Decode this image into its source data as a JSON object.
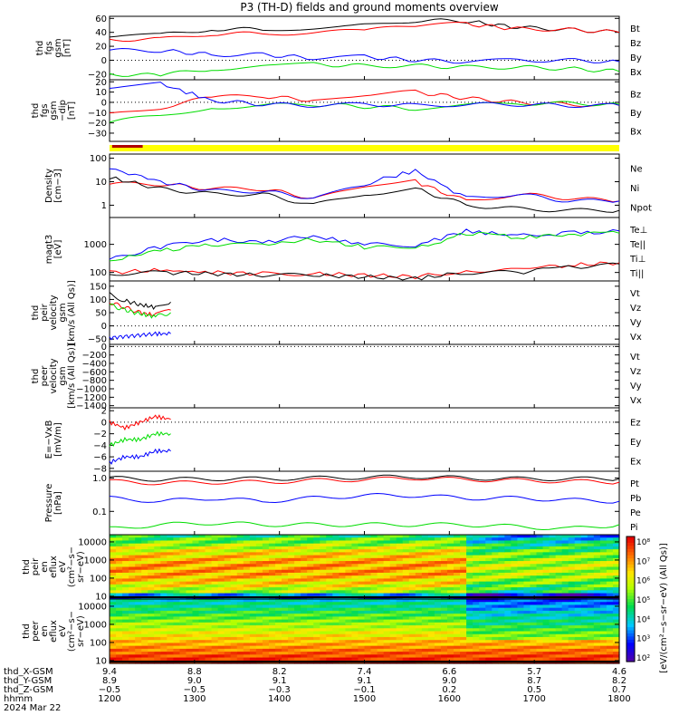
{
  "title": "P3 (TH-D) fields and ground moments overview",
  "chart_data": [
    {
      "type": "line",
      "ylabel": [
        "thd",
        "fgs",
        "gsm",
        "[nT]"
      ],
      "ylim": [
        -28,
        63
      ],
      "yticks": [
        "60",
        "40",
        "20",
        "0",
        "−20"
      ],
      "ytick_values": [
        60,
        40,
        20,
        0,
        -20
      ],
      "series": [
        {
          "name": "Bt",
          "color": "#000000",
          "x": [
            0,
            0.1,
            0.2,
            0.3,
            0.4,
            0.5,
            0.6,
            0.7,
            0.8,
            0.9,
            1
          ],
          "values": [
            33,
            36,
            45,
            44,
            47,
            50,
            57,
            56,
            47,
            44,
            40
          ]
        },
        {
          "name": "Bz",
          "color": "#ff0000",
          "x": [
            0,
            0.1,
            0.2,
            0.3,
            0.4,
            0.5,
            0.6,
            0.7,
            0.8,
            0.9,
            1
          ],
          "values": [
            30,
            30,
            38,
            38,
            40,
            42,
            50,
            52,
            45,
            44,
            40
          ]
        },
        {
          "name": "By",
          "color": "#0000ff",
          "x": [
            0,
            0.1,
            0.2,
            0.3,
            0.4,
            0.5,
            0.6,
            0.7,
            0.8,
            0.9,
            1
          ],
          "values": [
            14,
            14,
            8,
            8,
            3,
            5,
            0,
            -2,
            0,
            0,
            -2
          ]
        },
        {
          "name": "Bx",
          "color": "#00dd00",
          "x": [
            0,
            0.1,
            0.2,
            0.3,
            0.4,
            0.5,
            0.6,
            0.7,
            0.8,
            0.9,
            1
          ],
          "values": [
            -20,
            -22,
            -12,
            -10,
            -6,
            -8,
            -8,
            -10,
            -10,
            -12,
            -16
          ]
        }
      ]
    },
    {
      "type": "line",
      "ylabel": [
        "thd",
        "fgs",
        "gsm",
        "−dip",
        "[nT]"
      ],
      "ylim": [
        -38,
        22
      ],
      "yticks": [
        "20",
        "10",
        "0",
        "−10",
        "−20",
        "−30"
      ],
      "ytick_values": [
        20,
        10,
        0,
        -10,
        -20,
        -30
      ],
      "series": [
        {
          "name": "Bz",
          "color": "#ff0000",
          "x": [
            0,
            0.1,
            0.2,
            0.3,
            0.4,
            0.5,
            0.6,
            0.7,
            0.8,
            0.9,
            1
          ],
          "values": [
            -12,
            -5,
            5,
            6,
            2,
            8,
            10,
            4,
            0,
            -2,
            -3
          ]
        },
        {
          "name": "By",
          "color": "#00dd00",
          "x": [
            0,
            0.1,
            0.2,
            0.3,
            0.4,
            0.5,
            0.6,
            0.7,
            0.8,
            0.9,
            1
          ],
          "values": [
            -20,
            -12,
            -5,
            -3,
            -2,
            -4,
            -6,
            -3,
            -1,
            -1,
            -2
          ]
        },
        {
          "name": "Bx",
          "color": "#0000ff",
          "x": [
            0,
            0.1,
            0.2,
            0.3,
            0.4,
            0.5,
            0.6,
            0.7,
            0.8,
            0.9,
            1
          ],
          "values": [
            15,
            18,
            2,
            -2,
            -3,
            -2,
            -3,
            -2,
            -2,
            -3,
            -3
          ]
        }
      ]
    },
    {
      "type": "line",
      "ylabel": [
        "Density",
        "[cm−3]"
      ],
      "yscale": "log",
      "ylim": [
        0.3,
        150
      ],
      "yticks": [
        "100",
        "10",
        "1"
      ],
      "ytick_values": [
        100,
        10,
        1
      ],
      "series": [
        {
          "name": "Ne",
          "color": "#ff0000",
          "x": [
            0,
            0.1,
            0.2,
            0.3,
            0.4,
            0.5,
            0.6,
            0.7,
            0.8,
            0.9,
            1
          ],
          "values": [
            8,
            8,
            5,
            5,
            2,
            5,
            10,
            1.5,
            3,
            2,
            1.5
          ]
        },
        {
          "name": "Ni",
          "color": "#000000",
          "x": [
            0,
            0.1,
            0.2,
            0.3,
            0.4,
            0.5,
            0.6,
            0.7,
            0.8,
            0.9,
            1
          ],
          "values": [
            15,
            5,
            3,
            3,
            1,
            3,
            5,
            1,
            0.7,
            0.6,
            0.6
          ]
        },
        {
          "name": "Npot",
          "color": "#0000ff",
          "x": [
            0,
            0.1,
            0.2,
            0.3,
            0.4,
            0.5,
            0.6,
            0.7,
            0.8,
            0.9,
            1
          ],
          "values": [
            40,
            10,
            4,
            4,
            2,
            8,
            30,
            2,
            3,
            1.5,
            1.5
          ]
        }
      ]
    },
    {
      "type": "line",
      "ylabel": [
        "magt3",
        "[eV]"
      ],
      "yscale": "log",
      "ylim": [
        50,
        9000
      ],
      "yticks": [
        "1000",
        "100"
      ],
      "ytick_values": [
        1000,
        100
      ],
      "series": [
        {
          "name": "Te⊥",
          "color": "#ff0000",
          "x": [
            0,
            0.1,
            0.2,
            0.3,
            0.4,
            0.5,
            0.6,
            0.7,
            0.8,
            0.9,
            1
          ],
          "values": [
            100,
            120,
            100,
            90,
            90,
            80,
            70,
            120,
            120,
            180,
            220
          ]
        },
        {
          "name": "Te||",
          "color": "#000000",
          "x": [
            0,
            0.1,
            0.2,
            0.3,
            0.4,
            0.5,
            0.6,
            0.7,
            0.8,
            0.9,
            1
          ],
          "values": [
            90,
            100,
            90,
            80,
            80,
            70,
            60,
            100,
            100,
            150,
            200
          ]
        },
        {
          "name": "Ti⊥",
          "color": "#0000ff",
          "x": [
            0,
            0.1,
            0.2,
            0.3,
            0.4,
            0.5,
            0.6,
            0.7,
            0.8,
            0.9,
            1
          ],
          "values": [
            300,
            800,
            1500,
            1200,
            2000,
            1000,
            900,
            3000,
            2000,
            2500,
            3000
          ]
        },
        {
          "name": "Ti||",
          "color": "#00dd00",
          "x": [
            0,
            0.1,
            0.2,
            0.3,
            0.4,
            0.5,
            0.6,
            0.7,
            0.8,
            0.9,
            1
          ],
          "values": [
            250,
            600,
            1000,
            900,
            1500,
            800,
            700,
            2500,
            1800,
            2200,
            2500
          ]
        }
      ]
    },
    {
      "type": "line",
      "ylabel": [
        "thd",
        "peir",
        "velocity",
        "gsm",
        "[km/s (All Qs)]"
      ],
      "ylim": [
        -70,
        170
      ],
      "yticks": [
        "150",
        "100",
        "50",
        "0",
        "−50"
      ],
      "ytick_values": [
        150,
        100,
        50,
        0,
        -50
      ],
      "series": [
        {
          "name": "Vt",
          "color": "#000000",
          "x": [
            0,
            0.03,
            0.06,
            0.09,
            0.12
          ],
          "values": [
            120,
            95,
            80,
            70,
            90
          ]
        },
        {
          "name": "Vz",
          "color": "#ff0000",
          "x": [
            0,
            0.03,
            0.06,
            0.09,
            0.12
          ],
          "values": [
            90,
            70,
            50,
            40,
            60
          ]
        },
        {
          "name": "Vy",
          "color": "#00dd00",
          "x": [
            0,
            0.03,
            0.06,
            0.09,
            0.12
          ],
          "values": [
            80,
            60,
            45,
            35,
            50
          ]
        },
        {
          "name": "Vx",
          "color": "#0000ff",
          "x": [
            0,
            0.03,
            0.06,
            0.09,
            0.12
          ],
          "values": [
            -45,
            -40,
            -35,
            -30,
            -30
          ]
        }
      ]
    },
    {
      "type": "line",
      "ylabel": [
        "thd",
        "peer",
        "velocity",
        "gsm",
        "[km/s (All Qs)]"
      ],
      "ylim": [
        -1450,
        50
      ],
      "yticks": [
        "0",
        "−200",
        "−400",
        "−600",
        "−800",
        "−1000",
        "−1200",
        "−1400"
      ],
      "ytick_values": [
        0,
        -200,
        -400,
        -600,
        -800,
        -1000,
        -1200,
        -1400
      ],
      "series": [
        {
          "name": "Vt",
          "color": "#000000",
          "x": [],
          "values": []
        },
        {
          "name": "Vz",
          "color": "#ff0000",
          "x": [],
          "values": []
        },
        {
          "name": "Vy",
          "color": "#00dd00",
          "x": [],
          "values": []
        },
        {
          "name": "Vx",
          "color": "#0000ff",
          "x": [],
          "values": []
        }
      ]
    },
    {
      "type": "line",
      "ylabel": [
        "E=−VxB",
        "[mV/m]"
      ],
      "ylim": [
        -8.5,
        2.5
      ],
      "yticks": [
        "2",
        "0",
        "−2",
        "−4",
        "−6",
        "−8"
      ],
      "ytick_values": [
        2,
        0,
        -2,
        -4,
        -6,
        -8
      ],
      "series": [
        {
          "name": "Ez",
          "color": "#ff0000",
          "x": [
            0,
            0.03,
            0.06,
            0.09,
            0.12
          ],
          "values": [
            0,
            -1,
            0,
            1,
            0.5
          ]
        },
        {
          "name": "Ey",
          "color": "#00dd00",
          "x": [
            0,
            0.03,
            0.06,
            0.09,
            0.12
          ],
          "values": [
            -4,
            -3,
            -3,
            -2,
            -2
          ]
        },
        {
          "name": "Ex",
          "color": "#0000ff",
          "x": [
            0,
            0.03,
            0.06,
            0.09,
            0.12
          ],
          "values": [
            -7,
            -6,
            -6,
            -5,
            -5
          ]
        }
      ]
    },
    {
      "type": "line",
      "ylabel": [
        "Pressure",
        "[nPa]"
      ],
      "yscale": "log",
      "ylim": [
        0.02,
        1.6
      ],
      "yticks": [
        "1.0",
        "0.1"
      ],
      "ytick_values": [
        1.0,
        0.1
      ],
      "series": [
        {
          "name": "Pt",
          "color": "#000000",
          "x": [
            0,
            0.1,
            0.2,
            0.3,
            0.4,
            0.5,
            0.6,
            0.7,
            0.8,
            0.9,
            1
          ],
          "values": [
            1.0,
            0.9,
            0.95,
            0.95,
            1.0,
            1.05,
            1.1,
            1.0,
            0.95,
            0.95,
            0.95
          ]
        },
        {
          "name": "Pb",
          "color": "#ff0000",
          "x": [
            0,
            0.1,
            0.2,
            0.3,
            0.4,
            0.5,
            0.6,
            0.7,
            0.8,
            0.9,
            1
          ],
          "values": [
            0.8,
            0.7,
            0.75,
            0.75,
            0.85,
            0.9,
            1.0,
            0.9,
            0.85,
            0.8,
            0.75
          ]
        },
        {
          "name": "Pe",
          "color": "#00dd00",
          "x": [
            0,
            0.1,
            0.2,
            0.3,
            0.4,
            0.5,
            0.6,
            0.7,
            0.8,
            0.9,
            1
          ],
          "values": [
            0.03,
            0.04,
            0.045,
            0.04,
            0.04,
            0.04,
            0.04,
            0.04,
            0.035,
            0.03,
            0.04
          ]
        },
        {
          "name": "Pi",
          "color": "#0000ff",
          "x": [
            0,
            0.1,
            0.2,
            0.3,
            0.4,
            0.5,
            0.6,
            0.7,
            0.8,
            0.9,
            1
          ],
          "values": [
            0.25,
            0.2,
            0.25,
            0.2,
            0.25,
            0.3,
            0.3,
            0.25,
            0.25,
            0.22,
            0.2
          ]
        }
      ]
    },
    {
      "type": "heatmap",
      "ylabel": [
        "thd",
        "peir",
        "en",
        "eflux",
        "eV",
        "(cm²−s−",
        "sr−eV)"
      ],
      "yscale": "log",
      "ylim": [
        7,
        25000
      ],
      "yticks": [
        "10000",
        "1000",
        "100",
        "10"
      ],
      "ytick_values": [
        10000,
        1000,
        100,
        10
      ]
    },
    {
      "type": "heatmap",
      "ylabel": [
        "thd",
        "peer",
        "en",
        "eflux",
        "eV",
        "(cm²−s−",
        "sr−eV)"
      ],
      "yscale": "log",
      "ylim": [
        7,
        25000
      ],
      "yticks": [
        "10000",
        "1000",
        "100",
        "10"
      ],
      "ytick_values": [
        10000,
        1000,
        100,
        10
      ]
    }
  ],
  "colorbar": {
    "label": "[eV/(cm²−s−sr−eV) (All Qs)]",
    "ticks": [
      "10⁸",
      "10⁷",
      "10⁶",
      "10⁵",
      "10⁴",
      "10³",
      "10²"
    ],
    "range": [
      100,
      100000000
    ]
  },
  "quality_bar": {
    "color": "#ffff00",
    "marker_color": "#b00000",
    "marker": [
      0.005,
      0.065
    ]
  },
  "x_axis": {
    "rows": [
      {
        "label": "thd_X-GSM",
        "values": [
          "9.4",
          "8.8",
          "8.2",
          "7.4",
          "6.6",
          "5.7",
          "4.6"
        ]
      },
      {
        "label": "thd_Y-GSM",
        "values": [
          "8.9",
          "9.0",
          "9.1",
          "9.1",
          "9.0",
          "8.7",
          "8.2"
        ]
      },
      {
        "label": "thd_Z-GSM",
        "values": [
          "−0.5",
          "−0.5",
          "−0.3",
          "−0.1",
          "0.2",
          "0.5",
          "0.7"
        ]
      },
      {
        "label": "hhmm",
        "values": [
          "1200",
          "1300",
          "1400",
          "1500",
          "1600",
          "1700",
          "1800"
        ]
      }
    ],
    "date": "2024 Mar 22"
  }
}
